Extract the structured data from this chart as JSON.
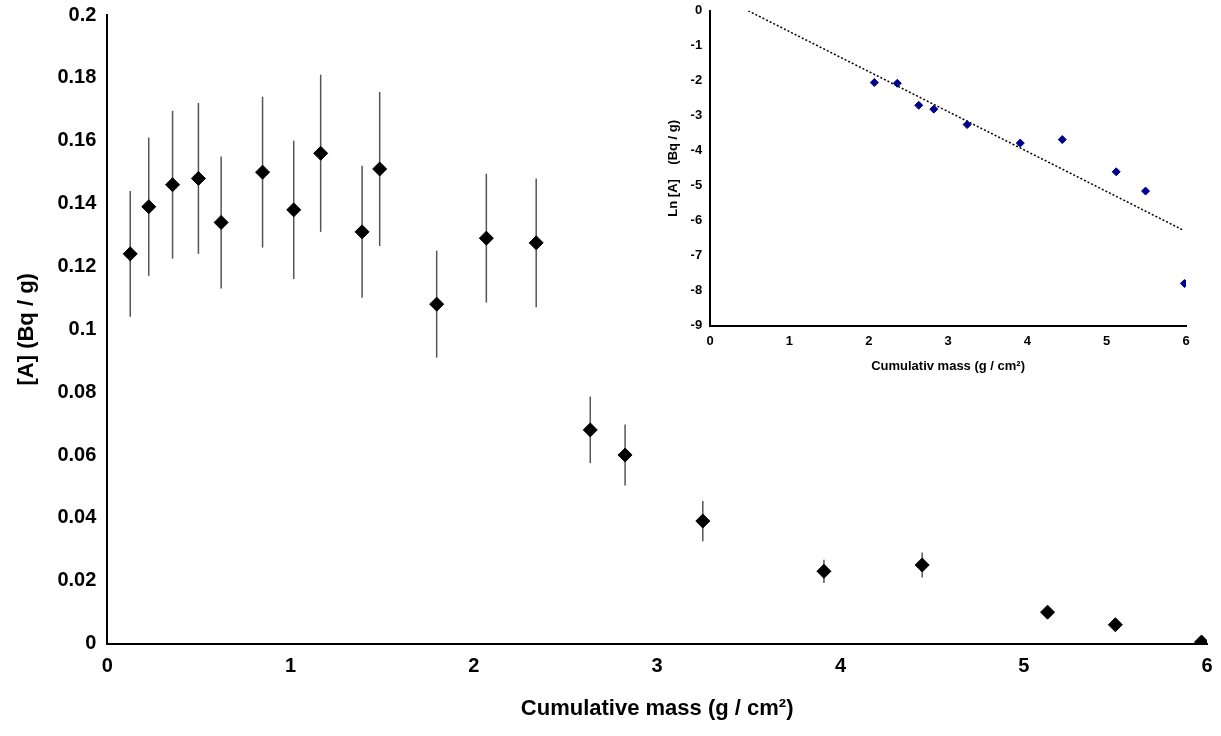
{
  "chart_data": [
    {
      "type": "scatter",
      "xlabel": "Cumulative mass (g / cm²)",
      "ylabel": "[A] (Bq / g)",
      "color": "#000000",
      "marker": "diamond",
      "x": [
        0.125,
        0.226,
        0.356,
        0.497,
        0.621,
        0.847,
        1.017,
        1.164,
        1.39,
        1.486,
        1.797,
        2.068,
        2.34,
        2.635,
        2.825,
        3.249,
        3.91,
        4.446,
        5.13,
        5.5,
        5.97
      ],
      "values": [
        0.124,
        0.139,
        0.146,
        0.148,
        0.134,
        0.15,
        0.138,
        0.156,
        0.131,
        0.151,
        0.108,
        0.129,
        0.1275,
        0.068,
        0.06,
        0.039,
        0.023,
        0.025,
        0.01,
        0.006,
        0.0005
      ],
      "errors": [
        0.02,
        0.022,
        0.0235,
        0.024,
        0.021,
        0.024,
        0.022,
        0.025,
        0.021,
        0.0245,
        0.017,
        0.0205,
        0.0205,
        0.0106,
        0.0097,
        0.0064,
        0.0037,
        0.004,
        null,
        null,
        null
      ],
      "xlim": [
        0,
        6
      ],
      "xticks": [
        0,
        1,
        2,
        3,
        4,
        5,
        6
      ],
      "ylim": [
        0,
        0.2
      ],
      "yticks": [
        0,
        0.02,
        0.04,
        0.06,
        0.08,
        0.1,
        0.12,
        0.14,
        0.16,
        0.18,
        0.2
      ]
    },
    {
      "type": "scatter",
      "xlabel": "Cumulativ mass (g / cm²)",
      "ylabel": "Ln [A]    (Bq / g)",
      "marker": "diamond",
      "xlim": [
        0,
        6
      ],
      "xticks": [
        0,
        1,
        2,
        3,
        4,
        5,
        6
      ],
      "ylim": [
        -9,
        0
      ],
      "yticks": [
        -9,
        -8,
        -7,
        -6,
        -5,
        -4,
        -3,
        -2,
        -1,
        0
      ],
      "series": [
        {
          "color": "#00008b",
          "x": [
            2.07,
            2.36,
            2.63,
            2.82,
            3.24,
            3.91,
            4.44,
            5.12,
            5.49,
            5.98
          ],
          "values": [
            -2.05,
            -2.07,
            -2.7,
            -2.81,
            -3.25,
            -3.78,
            -3.68,
            -4.6,
            -5.15,
            -7.79
          ]
        },
        {
          "type": "line",
          "color": "#000000",
          "line_style": "dotted",
          "marker": "none",
          "x": [
            0.48,
            5.95
          ],
          "values": [
            0,
            -6.25
          ]
        }
      ]
    }
  ]
}
